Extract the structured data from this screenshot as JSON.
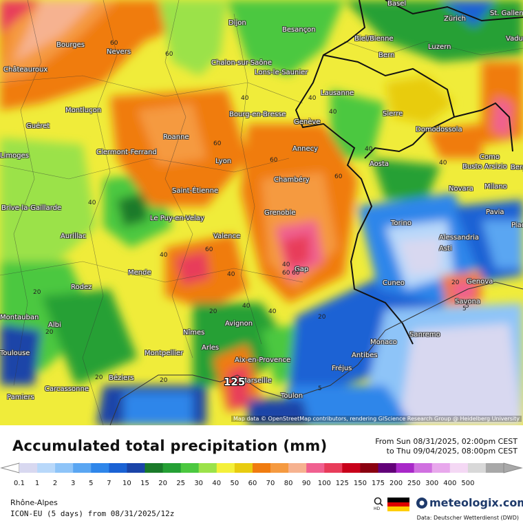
{
  "header": {
    "title": "Accumulated total precipitation (mm)",
    "period_from": "From Sun 08/31/2025, 02:00pm CEST",
    "period_to": "to Thu 09/04/2025, 08:00pm CEST"
  },
  "footer": {
    "region": "Rhône-Alpes",
    "model": "ICON-EU (5 days) from 08/31/2025/12z",
    "brand": "meteologix.com",
    "source": "Data: Deutscher Wetterdienst (DWD)",
    "hd_label": "HD"
  },
  "map": {
    "attribution": "Map data © OpenStreetMap contributors, rendering GIScience Research Group @ Heidelberg University",
    "max_label": "125",
    "cities": [
      {
        "name": "Basel"
      },
      {
        "name": "Zürich"
      },
      {
        "name": "St. Gallen"
      },
      {
        "name": "Dijon"
      },
      {
        "name": "Besançon"
      },
      {
        "name": "Biel/Bienne"
      },
      {
        "name": "Vaduz"
      },
      {
        "name": "Bourges"
      },
      {
        "name": "Nevers"
      },
      {
        "name": "Bern"
      },
      {
        "name": "Luzern"
      },
      {
        "name": "Chalon-sur-Saône"
      },
      {
        "name": "Lons-le-Saunier"
      },
      {
        "name": "Châteauroux"
      },
      {
        "name": "Lausanne"
      },
      {
        "name": "Montluçon"
      },
      {
        "name": "Bourg-en-Bresse"
      },
      {
        "name": "Sierre"
      },
      {
        "name": "Genève"
      },
      {
        "name": "Guéret"
      },
      {
        "name": "Domodossola"
      },
      {
        "name": "Roanne"
      },
      {
        "name": "Annecy"
      },
      {
        "name": "Clermont-Ferrand"
      },
      {
        "name": "Limoges"
      },
      {
        "name": "Lyon"
      },
      {
        "name": "Aosta"
      },
      {
        "name": "Busto Arsizio"
      },
      {
        "name": "Como"
      },
      {
        "name": "Bergamo"
      },
      {
        "name": "Chambéry"
      },
      {
        "name": "Saint-Étienne"
      },
      {
        "name": "Novara"
      },
      {
        "name": "Milano"
      },
      {
        "name": "Brive-la-Gaillarde"
      },
      {
        "name": "Le Puy-en-Velay"
      },
      {
        "name": "Grenoble"
      },
      {
        "name": "Pavia"
      },
      {
        "name": "Torino"
      },
      {
        "name": "Piacenza"
      },
      {
        "name": "Aurillac"
      },
      {
        "name": "Valence"
      },
      {
        "name": "Alessandria"
      },
      {
        "name": "Asti"
      },
      {
        "name": "Mende"
      },
      {
        "name": "Gap"
      },
      {
        "name": "Genova"
      },
      {
        "name": "Rodez"
      },
      {
        "name": "Cuneo"
      },
      {
        "name": "Savona"
      },
      {
        "name": "Montauban"
      },
      {
        "name": "Albi"
      },
      {
        "name": "Avignon"
      },
      {
        "name": "Nîmes"
      },
      {
        "name": "Monaco"
      },
      {
        "name": "Sanremo"
      },
      {
        "name": "Toulouse"
      },
      {
        "name": "Arles"
      },
      {
        "name": "Montpellier"
      },
      {
        "name": "Antibes"
      },
      {
        "name": "Aix-en-Provence"
      },
      {
        "name": "Fréjus"
      },
      {
        "name": "Béziers"
      },
      {
        "name": "Marseille"
      },
      {
        "name": "Carcassonne"
      },
      {
        "name": "Pamiers"
      },
      {
        "name": "Toulon"
      }
    ],
    "isoline_labels": [
      "60",
      "60",
      "40",
      "40",
      "40",
      "60",
      "60",
      "40",
      "40",
      "40",
      "60",
      "40",
      "60",
      "40",
      "60",
      "20",
      "20",
      "20",
      "20",
      "20",
      "5",
      "5",
      "40",
      "20",
      "40",
      "20",
      "40",
      "60",
      "5"
    ]
  },
  "legend": {
    "ticks": [
      "0.1",
      "1",
      "2",
      "3",
      "5",
      "7",
      "10",
      "15",
      "20",
      "25",
      "30",
      "40",
      "50",
      "60",
      "70",
      "80",
      "90",
      "100",
      "125",
      "150",
      "175",
      "200",
      "250",
      "300",
      "400",
      "500"
    ],
    "colors": [
      "#d8d8f0",
      "#b8d8fa",
      "#8ec4f8",
      "#5aa6f2",
      "#2f86ea",
      "#1a62d4",
      "#1a44a8",
      "#1a7a2a",
      "#25a035",
      "#4cc840",
      "#9be24a",
      "#f4f03a",
      "#e8cc10",
      "#f07c10",
      "#f59a40",
      "#f6b290",
      "#f06090",
      "#e83c5a",
      "#c8001a",
      "#8a0010",
      "#620078",
      "#a828c8",
      "#d070e0",
      "#e8a8ec",
      "#f4d8f4",
      "#d8d8d8",
      "#a8a8a8"
    ]
  }
}
